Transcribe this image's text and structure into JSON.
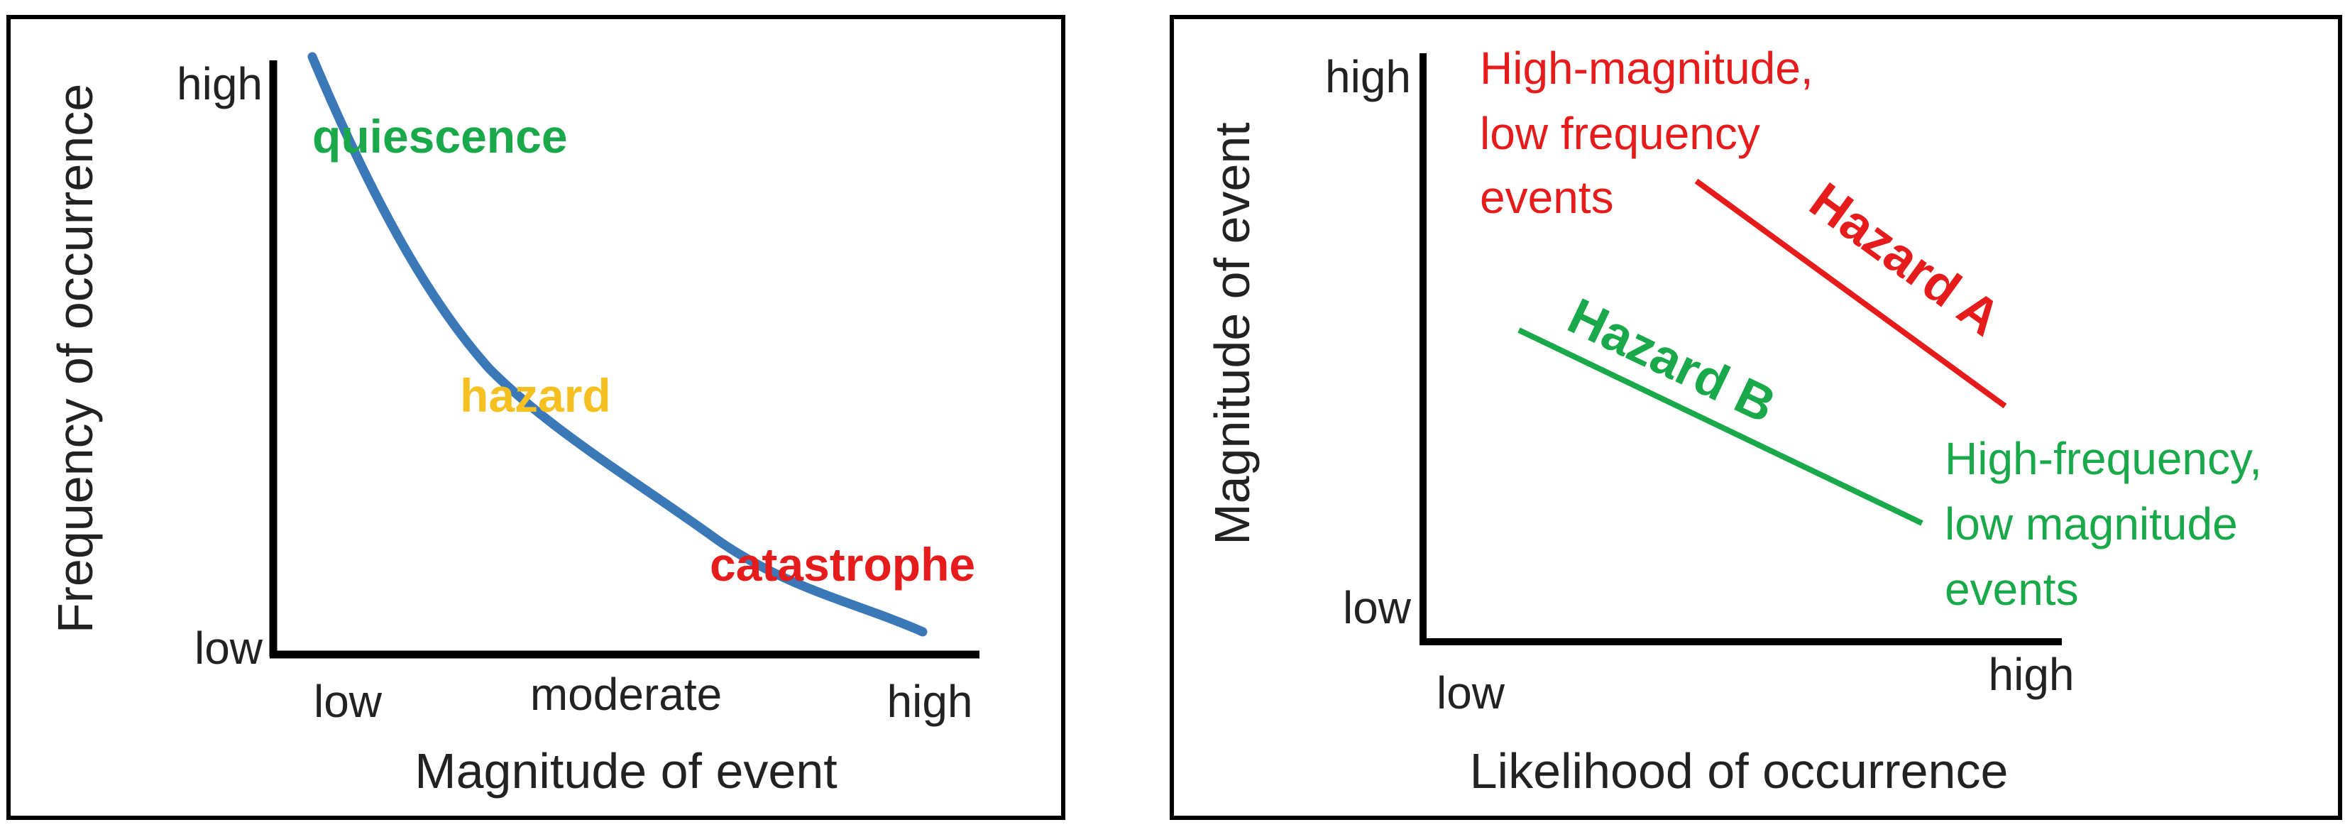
{
  "colors": {
    "curve": "#3a78b8",
    "green": "#19a84a",
    "yellow": "#f5c020",
    "red": "#e61c1c",
    "text": "#222222"
  },
  "left_panel": {
    "y_title": "Frequency of occurrence",
    "x_title": "Magnitude of event",
    "y_ticks": {
      "high": "high",
      "low": "low"
    },
    "x_ticks": {
      "low": "low",
      "moderate": "moderate",
      "high": "high"
    },
    "labels": {
      "quiescence": "quiescence",
      "hazard": "hazard",
      "catastrophe": "catastrophe"
    }
  },
  "right_panel": {
    "y_title": "Magnitude of event",
    "x_title": "Likelihood of occurrence",
    "y_ticks": {
      "high": "high",
      "low": "low"
    },
    "x_ticks": {
      "low": "low",
      "high": "high"
    },
    "hazard_a": "Hazard A",
    "hazard_b": "Hazard B",
    "note_top": [
      "High-magnitude,",
      "low frequency",
      "events"
    ],
    "note_bottom": [
      "High-frequency,",
      "low magnitude",
      "events"
    ]
  }
}
